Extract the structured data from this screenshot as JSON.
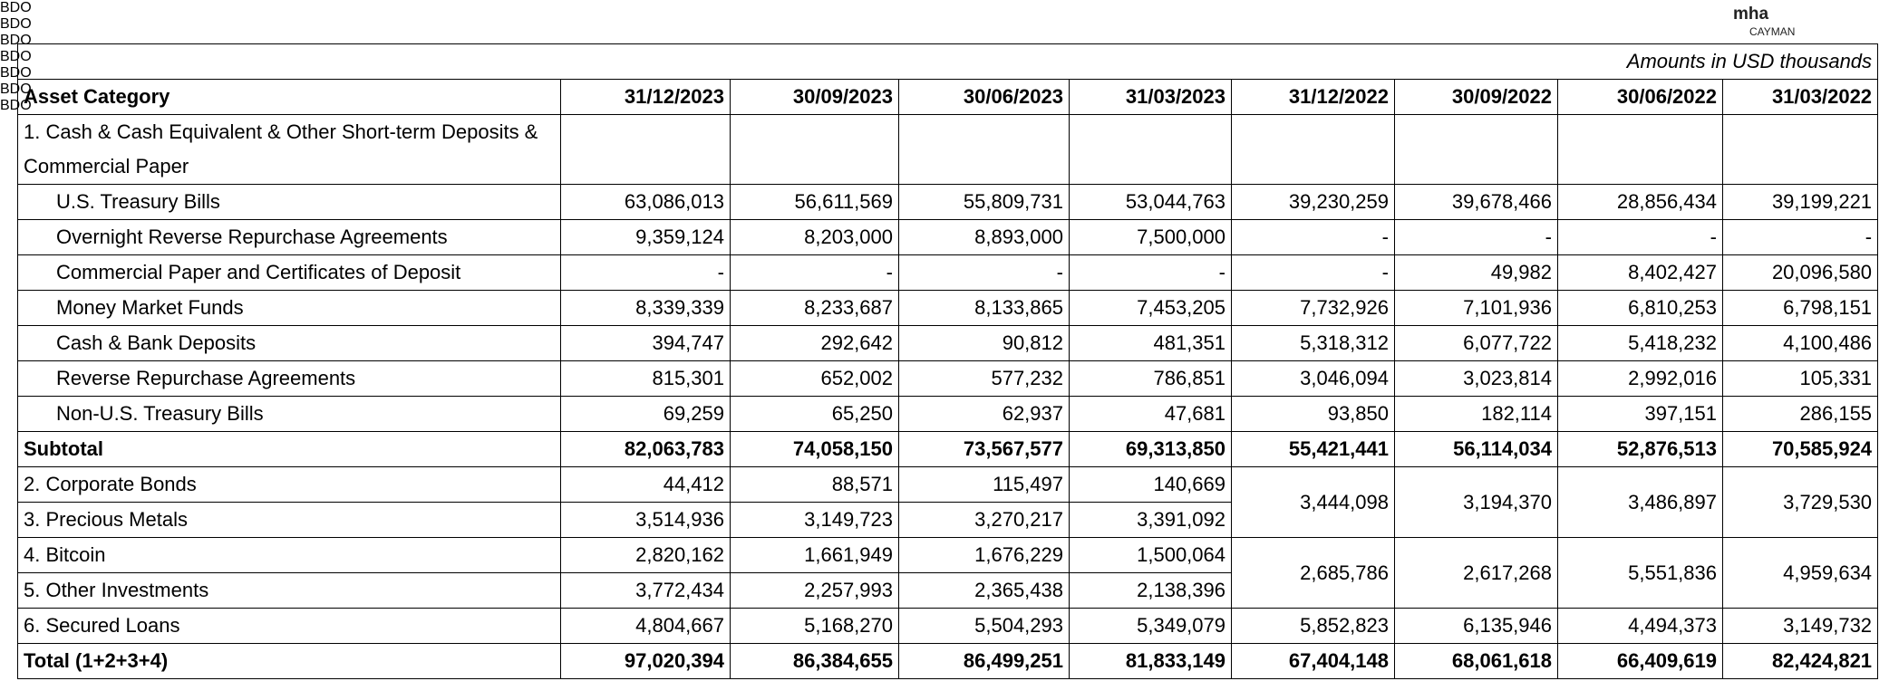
{
  "logos": [
    "BDO",
    "BDO",
    "BDO",
    "BDO",
    "BDO",
    "BDO",
    "BDO"
  ],
  "mha": {
    "name": "mha",
    "sub": "CAYMAN"
  },
  "note": "Amounts in USD thousands",
  "table": {
    "header": [
      "Asset Category",
      "31/12/2023",
      "30/09/2023",
      "30/06/2023",
      "31/03/2023",
      "31/12/2022",
      "30/09/2022",
      "30/06/2022",
      "31/03/2022"
    ],
    "cash_title": "1. Cash & Cash Equivalent & Other Short-term Deposits & Commercial Paper",
    "cash_items": [
      [
        "U.S. Treasury Bills",
        "63,086,013",
        "56,611,569",
        "55,809,731",
        "53,044,763",
        "39,230,259",
        "39,678,466",
        "28,856,434",
        "39,199,221"
      ],
      [
        "Overnight Reverse Repurchase Agreements",
        "9,359,124",
        "8,203,000",
        "8,893,000",
        "7,500,000",
        "-",
        "-",
        "-",
        "-"
      ],
      [
        "Commercial Paper and Certificates of Deposit",
        "-",
        "-",
        "-",
        "-",
        "-",
        "49,982",
        "8,402,427",
        "20,096,580"
      ],
      [
        "Money Market Funds",
        "8,339,339",
        "8,233,687",
        "8,133,865",
        "7,453,205",
        "7,732,926",
        "7,101,936",
        "6,810,253",
        "6,798,151"
      ],
      [
        "Cash & Bank Deposits",
        "394,747",
        "292,642",
        "90,812",
        "481,351",
        "5,318,312",
        "6,077,722",
        "5,418,232",
        "4,100,486"
      ],
      [
        "Reverse Repurchase Agreements",
        "815,301",
        "652,002",
        "577,232",
        "786,851",
        "3,046,094",
        "3,023,814",
        "2,992,016",
        "105,331"
      ],
      [
        "Non-U.S. Treasury Bills",
        "69,259",
        "65,250",
        "62,937",
        "47,681",
        "93,850",
        "182,114",
        "397,151",
        "286,155"
      ]
    ],
    "subtotal": [
      "Subtotal",
      "82,063,783",
      "74,058,150",
      "73,567,577",
      "69,313,850",
      "55,421,441",
      "56,114,034",
      "52,876,513",
      "70,585,924"
    ],
    "other_rows": [
      [
        "2. Corporate Bonds",
        "44,412",
        "88,571",
        "115,497",
        "140,669",
        "3,444,098",
        "3,194,370",
        "3,486,897",
        "3,729,530"
      ],
      [
        "3. Precious Metals",
        "3,514,936",
        "3,149,723",
        "3,270,217",
        "3,391,092",
        null,
        null,
        null,
        null
      ],
      [
        "4. Bitcoin",
        "2,820,162",
        "1,661,949",
        "1,676,229",
        "1,500,064",
        "2,685,786",
        "2,617,268",
        "5,551,836",
        "4,959,634"
      ],
      [
        "5. Other Investments",
        "3,772,434",
        "2,257,993",
        "2,365,438",
        "2,138,396",
        null,
        null,
        null,
        null
      ],
      [
        "6. Secured Loans",
        "4,804,667",
        "5,168,270",
        "5,504,293",
        "5,349,079",
        "5,852,823",
        "6,135,946",
        "4,494,373",
        "3,149,732"
      ]
    ],
    "total": [
      "Total (1+2+3+4)",
      "97,020,394",
      "86,384,655",
      "86,499,251",
      "81,833,149",
      "67,404,148",
      "68,061,618",
      "66,409,619",
      "82,424,821"
    ]
  }
}
